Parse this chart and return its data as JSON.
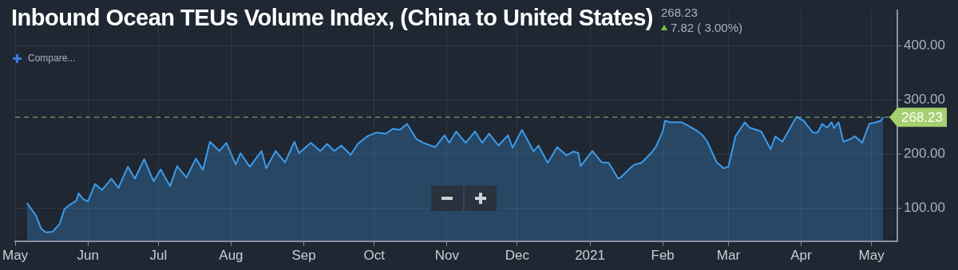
{
  "chart_data": {
    "type": "area",
    "title": "Inbound Ocean TEUs Volume Index, (China to United States)",
    "subtitle": "268.23",
    "annotations": [
      "7.82 ( 3.00%)",
      "Compare..."
    ],
    "x": [
      "2020-05-06",
      "2020-05-10",
      "2020-05-12",
      "2020-05-14",
      "2020-05-17",
      "2020-05-20",
      "2020-05-22",
      "2020-05-24",
      "2020-05-27",
      "2020-05-28",
      "2020-05-30",
      "2020-06-01",
      "2020-06-04",
      "2020-06-07",
      "2020-06-11",
      "2020-06-14",
      "2020-06-18",
      "2020-06-21",
      "2020-06-25",
      "2020-06-29",
      "2020-07-02",
      "2020-07-06",
      "2020-07-09",
      "2020-07-13",
      "2020-07-17",
      "2020-07-20",
      "2020-07-23",
      "2020-07-27",
      "2020-07-30",
      "2020-08-03",
      "2020-08-05",
      "2020-08-09",
      "2020-08-14",
      "2020-08-16",
      "2020-08-20",
      "2020-08-24",
      "2020-08-28",
      "2020-08-30",
      "2020-09-04",
      "2020-09-08",
      "2020-09-11",
      "2020-09-14",
      "2020-09-17",
      "2020-09-21",
      "2020-09-24",
      "2020-09-28",
      "2020-10-02",
      "2020-10-06",
      "2020-10-09",
      "2020-10-12",
      "2020-10-15",
      "2020-10-19",
      "2020-10-22",
      "2020-10-27",
      "2020-10-31",
      "2020-11-02",
      "2020-11-05",
      "2020-11-09",
      "2020-11-13",
      "2020-11-16",
      "2020-11-19",
      "2020-11-23",
      "2020-11-27",
      "2020-11-29",
      "2020-12-03",
      "2020-12-08",
      "2020-12-10",
      "2020-12-14",
      "2020-12-18",
      "2020-12-22",
      "2020-12-25",
      "2020-12-27",
      "2020-12-28",
      "2021-01-02",
      "2021-01-06",
      "2021-01-09",
      "2021-01-13",
      "2021-01-14",
      "2021-01-18",
      "2021-01-20",
      "2021-01-23",
      "2021-01-27",
      "2021-01-29",
      "2021-02-01",
      "2021-02-02",
      "2021-02-04",
      "2021-02-09",
      "2021-02-12",
      "2021-02-15",
      "2021-02-18",
      "2021-02-20",
      "2021-02-24",
      "2021-02-27",
      "2021-03-01",
      "2021-03-04",
      "2021-03-08",
      "2021-03-10",
      "2021-03-15",
      "2021-03-19",
      "2021-03-21",
      "2021-03-24",
      "2021-03-26",
      "2021-03-30",
      "2021-04-02",
      "2021-04-06",
      "2021-04-08",
      "2021-04-10",
      "2021-04-12",
      "2021-04-14",
      "2021-04-15",
      "2021-04-17",
      "2021-04-19",
      "2021-04-22",
      "2021-04-24",
      "2021-04-27",
      "2021-04-30",
      "2021-05-03",
      "2021-05-05",
      "2021-05-06"
    ],
    "series": [
      {
        "color": "#3d9be9",
        "values": [
          110,
          86,
          63,
          56,
          57,
          72,
          99,
          106,
          114,
          128,
          117,
          113,
          145,
          134,
          155,
          138,
          177,
          155,
          191,
          150,
          172,
          141,
          178,
          157,
          192,
          171,
          223,
          206,
          221,
          181,
          202,
          177,
          206,
          174,
          206,
          185,
          223,
          202,
          221,
          206,
          219,
          206,
          216,
          199,
          219,
          233,
          240,
          238,
          247,
          245,
          256,
          228,
          221,
          213,
          235,
          221,
          242,
          221,
          242,
          221,
          238,
          216,
          235,
          212,
          245,
          205,
          216,
          184,
          213,
          198,
          205,
          202,
          178,
          206,
          185,
          184,
          155,
          157,
          174,
          181,
          184,
          202,
          213,
          242,
          262,
          259,
          259,
          252,
          245,
          235,
          223,
          185,
          174,
          177,
          233,
          259,
          249,
          242,
          209,
          233,
          223,
          238,
          269,
          262,
          240,
          240,
          256,
          249,
          259,
          248,
          259,
          223,
          228,
          233,
          221,
          256,
          259,
          262,
          268.23
        ]
      }
    ],
    "xlim": [
      "2020-05-01",
      "2021-05-12"
    ],
    "xticks": [
      {
        "value": "2020-05-01",
        "label": "May"
      },
      {
        "value": "2020-06-01",
        "label": "Jun"
      },
      {
        "value": "2020-07-01",
        "label": "Jul"
      },
      {
        "value": "2020-08-01",
        "label": "Aug"
      },
      {
        "value": "2020-09-01",
        "label": "Sep"
      },
      {
        "value": "2020-10-01",
        "label": "Oct"
      },
      {
        "value": "2020-11-01",
        "label": "Nov"
      },
      {
        "value": "2020-12-01",
        "label": "Dec"
      },
      {
        "value": "2021-01-01",
        "label": "2021"
      },
      {
        "value": "2021-02-01",
        "label": "Feb"
      },
      {
        "value": "2021-03-01",
        "label": "Mar"
      },
      {
        "value": "2021-04-01",
        "label": "Apr"
      },
      {
        "value": "2021-05-01",
        "label": "May"
      }
    ],
    "ylim": [
      40,
      465
    ],
    "yticks": [
      {
        "value": 100,
        "label": "100.00"
      },
      {
        "value": 200,
        "label": "200.00"
      },
      {
        "value": 300,
        "label": "300.00"
      },
      {
        "value": 400,
        "label": "400.00"
      }
    ],
    "ref_lines": [
      {
        "axis": "y",
        "value": 268.23,
        "label": "268.23",
        "color": "#a5d06f",
        "line_style": "dashed"
      }
    ],
    "grid": true
  }
}
